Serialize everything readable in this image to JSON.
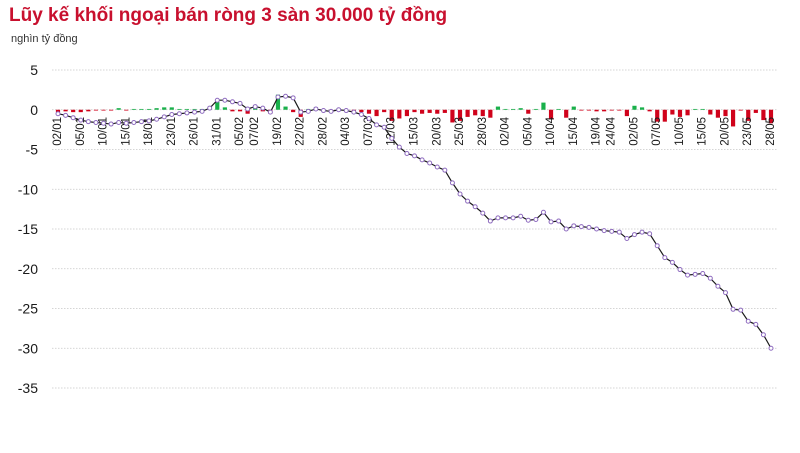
{
  "title": "Lũy kế khối ngoại bán ròng 3 sàn 30.000 tỷ đồng",
  "unit_label": "nghìn tỷ đồng",
  "colors": {
    "title": "#c8102e",
    "line": "#1a1a1a",
    "marker": "#8e6bbf",
    "bar_positive": "#19b04a",
    "bar_negative": "#d0021b",
    "grid": "#c8c8c8"
  },
  "chart_data": {
    "type": "bar+line",
    "title": "Lũy kế khối ngoại bán ròng 3 sàn 30.000 tỷ đồng",
    "ylabel": "nghìn tỷ đồng",
    "ylim": [
      -35,
      5
    ],
    "yticks": [
      5,
      0,
      -5,
      -10,
      -15,
      -20,
      -25,
      -30,
      -35
    ],
    "grid": true,
    "x_tick_labels": [
      "02/01",
      "05/01",
      "10/01",
      "15/01",
      "18/01",
      "23/01",
      "26/01",
      "31/01",
      "05/02",
      "07/02",
      "19/02",
      "22/02",
      "28/02",
      "04/03",
      "07/03",
      "12/03",
      "15/03",
      "20/03",
      "25/03",
      "28/03",
      "02/04",
      "05/04",
      "10/04",
      "15/04",
      "19/04",
      "24/04",
      "02/05",
      "07/05",
      "10/05",
      "15/05",
      "20/05",
      "23/05",
      "28/05"
    ],
    "series": [
      {
        "kind": "line",
        "values": [
          -0.5,
          -0.7,
          -1.0,
          -1.3,
          -1.5,
          -1.6,
          -1.7,
          -1.8,
          -1.6,
          -1.7,
          -1.6,
          -1.5,
          -1.4,
          -1.2,
          -0.9,
          -0.6,
          -0.5,
          -0.4,
          -0.3,
          -0.2,
          0.2,
          1.2,
          1.2,
          1.0,
          0.8,
          0.1,
          0.4,
          0.2,
          -0.3,
          1.6,
          1.7,
          1.5,
          -0.3,
          -0.2,
          0.1,
          -0.1,
          -0.2,
          0.0,
          -0.1,
          -0.3,
          -0.6,
          -1.1,
          -1.9,
          -2.2,
          -3.6,
          -4.7,
          -5.5,
          -5.8,
          -6.3,
          -6.7,
          -7.2,
          -7.6,
          -9.2,
          -10.6,
          -11.5,
          -12.2,
          -13.0,
          -14.0,
          -13.6,
          -13.6,
          -13.6,
          -13.4,
          -13.9,
          -13.8,
          -12.9,
          -14.1,
          -14.0,
          -15.0,
          -14.6,
          -14.7,
          -14.8,
          -15.0,
          -15.2,
          -15.3,
          -15.4,
          -16.2,
          -15.7,
          -15.4,
          -15.6,
          -17.1,
          -18.6,
          -19.2,
          -20.1,
          -20.8,
          -20.7,
          -20.6,
          -21.2,
          -22.2,
          -23.0,
          -25.1,
          -25.2,
          -26.6,
          -27.0,
          -28.3,
          -30.0
        ]
      },
      {
        "kind": "bar",
        "values": [
          -0.3,
          -0.2,
          -0.3,
          -0.3,
          -0.2,
          -0.1,
          -0.1,
          -0.1,
          0.2,
          -0.1,
          0.1,
          0.1,
          0.1,
          0.2,
          0.3,
          0.3,
          0.1,
          0.1,
          0.1,
          0.1,
          0.4,
          1.0,
          0.3,
          -0.2,
          -0.2,
          -0.5,
          0.3,
          -0.2,
          -0.5,
          1.9,
          0.4,
          -0.3,
          -0.9,
          0.1,
          0.3,
          -0.2,
          -0.1,
          0.2,
          -0.1,
          -0.2,
          -0.3,
          -0.5,
          -0.8,
          -0.3,
          -1.4,
          -1.1,
          -0.8,
          -0.3,
          -0.5,
          -0.4,
          -0.5,
          -0.4,
          -1.6,
          -1.4,
          -0.9,
          -0.7,
          -0.8,
          -1.0,
          0.4,
          0.1,
          0.1,
          0.2,
          -0.5,
          0.1,
          0.9,
          -1.2,
          0.1,
          -1.0,
          0.4,
          -0.1,
          -0.1,
          -0.2,
          -0.2,
          -0.1,
          -0.1,
          -0.8,
          0.5,
          0.3,
          -0.2,
          -1.5,
          -1.5,
          -0.6,
          -0.9,
          -0.7,
          0.1,
          0.1,
          -0.6,
          -1.0,
          -0.8,
          -2.1,
          -0.1,
          -1.4,
          -0.4,
          -1.3,
          -1.7
        ]
      }
    ]
  }
}
